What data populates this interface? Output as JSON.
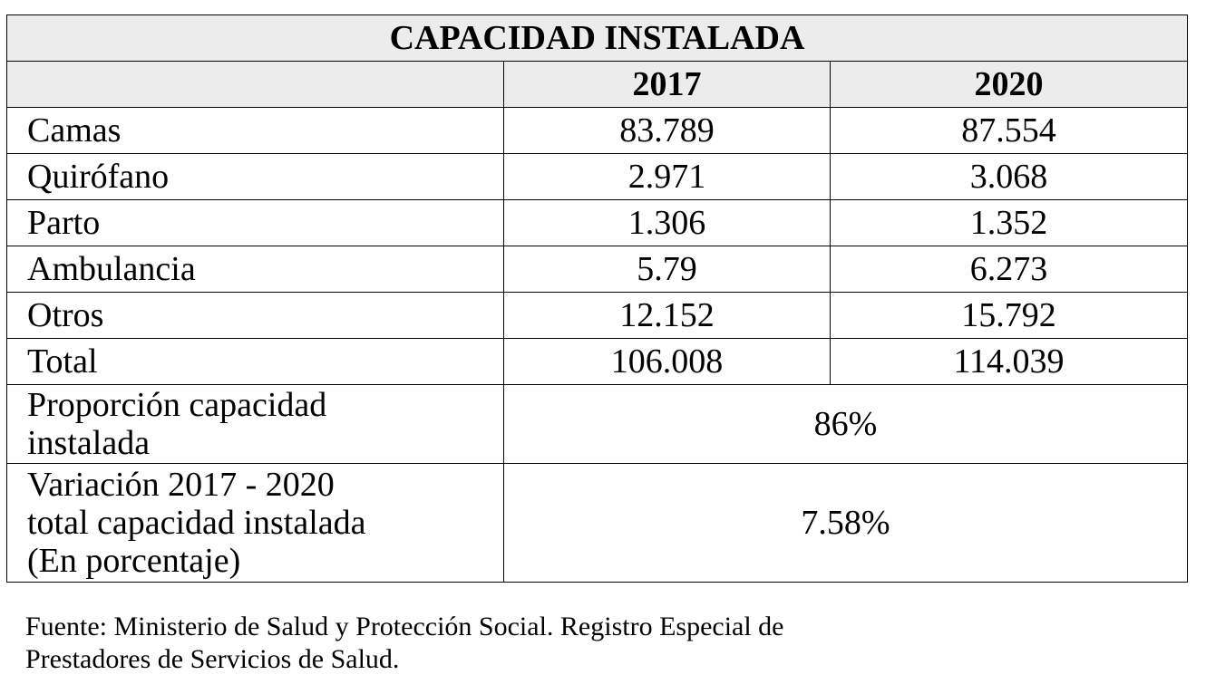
{
  "table": {
    "title": "CAPACIDAD INSTALADA",
    "years": [
      "2017",
      "2020"
    ],
    "rows": [
      {
        "label": "Camas",
        "v2017": "83.789",
        "v2020": "87.554"
      },
      {
        "label": "Quirófano",
        "v2017": "2.971",
        "v2020": "3.068"
      },
      {
        "label": "Parto",
        "v2017": "1.306",
        "v2020": "1.352"
      },
      {
        "label": "Ambulancia",
        "v2017": "5.79",
        "v2020": "6.273"
      },
      {
        "label": "Otros",
        "v2017": "12.152",
        "v2020": "15.792"
      },
      {
        "label": "Total",
        "v2017": "106.008",
        "v2020": "114.039"
      }
    ],
    "proporcion": {
      "label_line1": "Proporción capacidad",
      "label_line2": "instalada",
      "value": "86%"
    },
    "variacion": {
      "label_line1": "Variación 2017 - 2020",
      "label_line2": "total capacidad instalada",
      "label_line3": "(En porcentaje)",
      "value": "7.58%"
    }
  },
  "footnote": {
    "line1": "Fuente: Ministerio de Salud y Protección Social. Registro Especial de",
    "line2": "Prestadores de Servicios de Salud."
  }
}
